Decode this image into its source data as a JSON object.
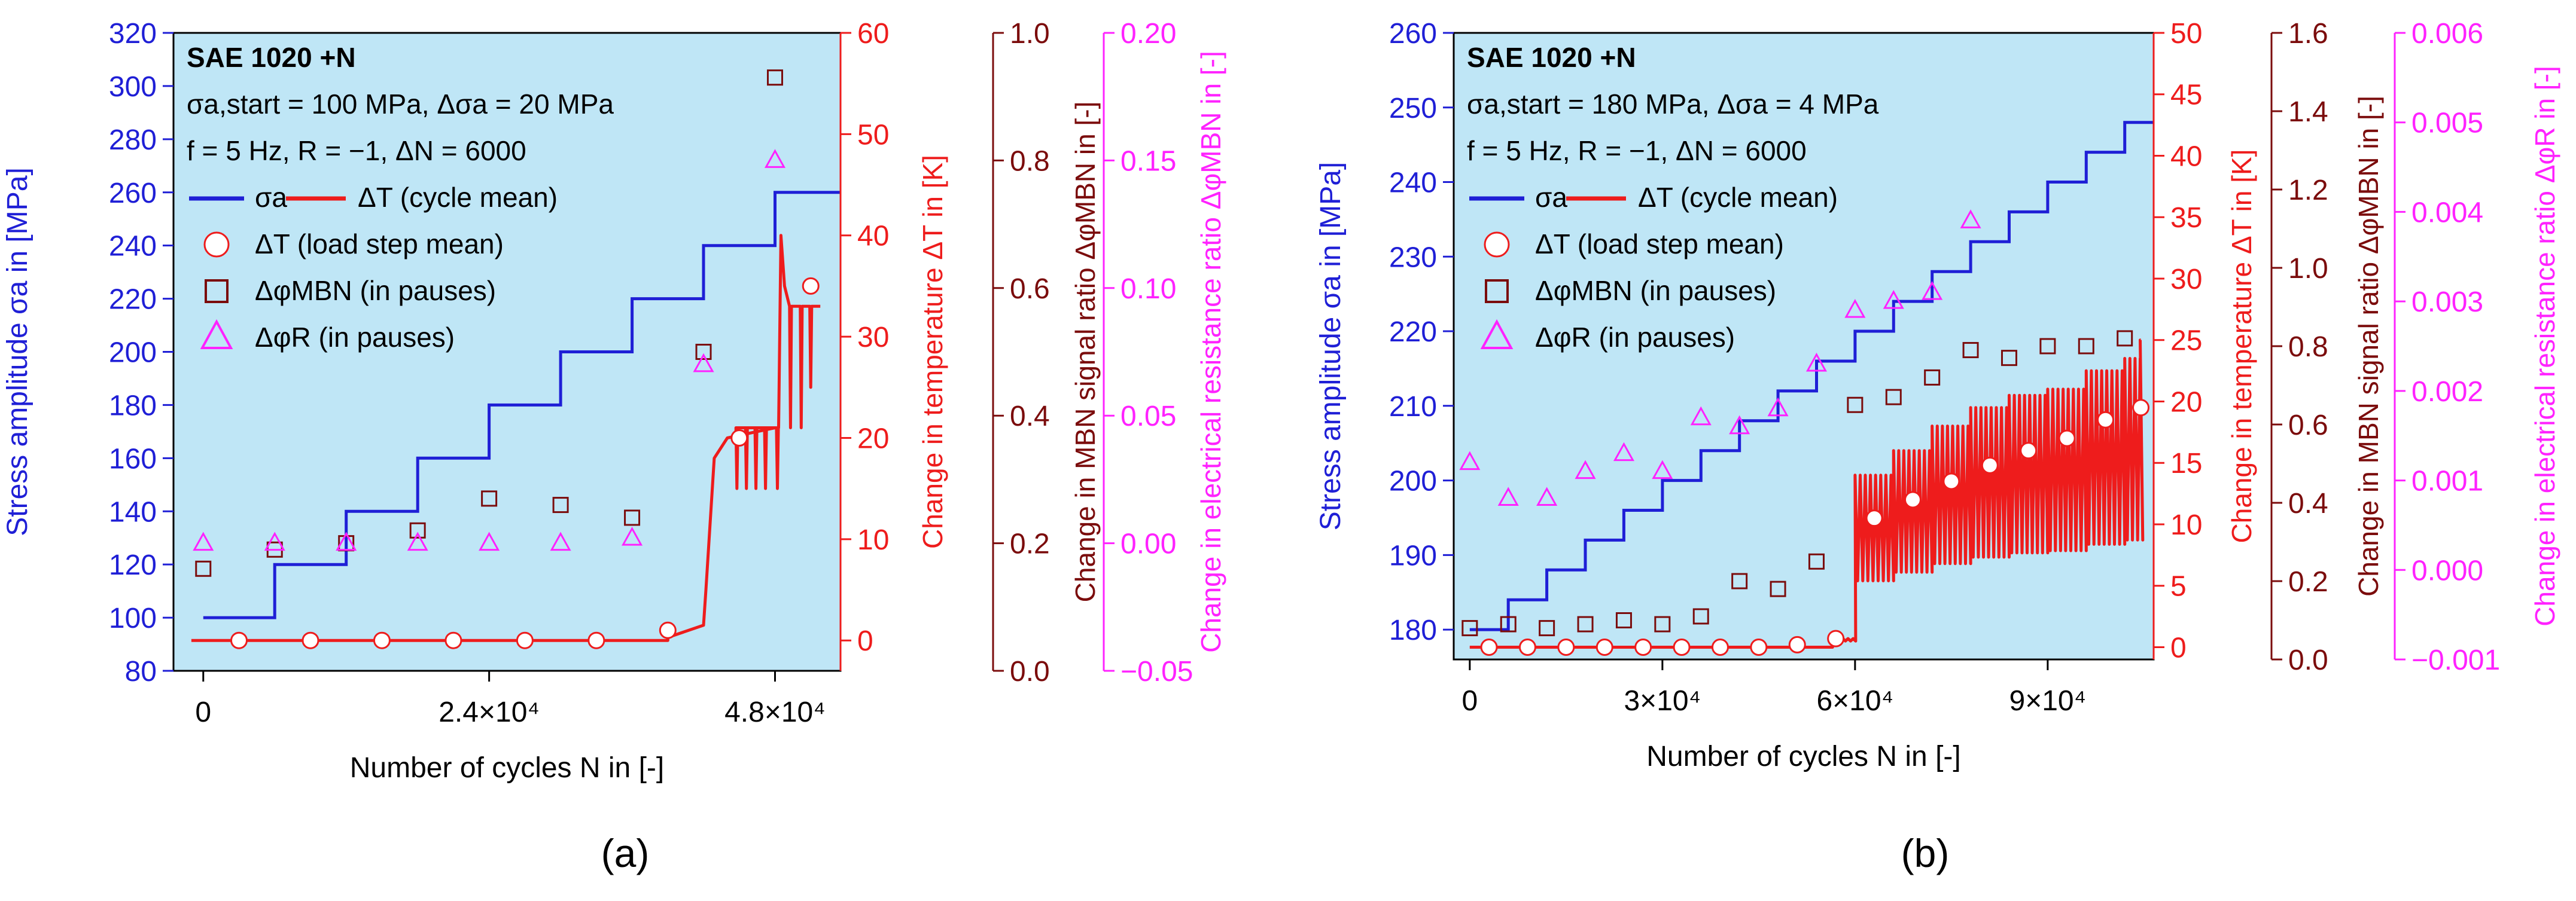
{
  "chart_data": [
    {
      "type": "line",
      "panel_label": "(a)",
      "material": "SAE 1020 +N",
      "info_lines": [
        "σa,start = 100 MPa, Δσa = 20 MPa",
        "f = 5 Hz, R = −1, ΔN = 6000"
      ],
      "xlabel": "Number of cycles N in [-]",
      "xlim": [
        -2500,
        53500
      ],
      "xticks": [
        0,
        24000,
        48000
      ],
      "xtick_labels": [
        "0",
        "2.4×10⁴",
        "4.8×10⁴"
      ],
      "axes": {
        "stress": {
          "label": "Stress amplitude σa in [MPa]",
          "range": [
            80,
            320
          ],
          "ticks": [
            80,
            100,
            120,
            140,
            160,
            180,
            200,
            220,
            240,
            260,
            280,
            300,
            320
          ],
          "color": "#1f1fd6"
        },
        "temp": {
          "label": "Change in temperature ΔT in [K]",
          "range": [
            -3,
            60
          ],
          "ticks": [
            0,
            10,
            20,
            30,
            40,
            50,
            60
          ],
          "color": "#ee1c1c"
        },
        "mbn": {
          "label": "Change in MBN signal ratio ΔφMBN in [-]",
          "range": [
            0,
            1.0
          ],
          "ticks": [
            0.0,
            0.2,
            0.4,
            0.6,
            0.8,
            1.0
          ],
          "tick_labels": [
            "0.0",
            "0.2",
            "0.4",
            "0.6",
            "0.8",
            "1.0"
          ],
          "color": "#7b0c0c"
        },
        "res": {
          "label": "Change in electrical resistance ratio ΔφMBN in [-]",
          "range": [
            -0.05,
            0.2
          ],
          "ticks": [
            -0.05,
            0.0,
            0.05,
            0.1,
            0.15,
            0.2
          ],
          "tick_labels": [
            "−0.05",
            "0.00",
            "0.05",
            "0.10",
            "0.15",
            "0.20"
          ],
          "color": "#ff22ff"
        }
      },
      "legend": [
        {
          "symbol": "line-blue",
          "label": "σa"
        },
        {
          "symbol": "line-red",
          "label": "ΔT (cycle mean)"
        },
        {
          "symbol": "circle",
          "label": "ΔT (load step mean)"
        },
        {
          "symbol": "square",
          "label": "ΔφMBN (in pauses)"
        },
        {
          "symbol": "triangle",
          "label": "ΔφR (in pauses)"
        }
      ],
      "series": {
        "stress_steps": {
          "name": "σa",
          "step_width": 6000,
          "x_start": 0,
          "values": [
            100,
            120,
            140,
            160,
            180,
            200,
            220,
            240,
            260
          ]
        },
        "temp_mean": {
          "name": "ΔT (load step mean)",
          "x": [
            3000,
            9000,
            15000,
            21000,
            27000,
            33000,
            39000,
            45000,
            51000
          ],
          "y": [
            0,
            0,
            0,
            0,
            0,
            0,
            1,
            20,
            35
          ]
        },
        "mbn": {
          "name": "ΔφMBN (in pauses)",
          "x": [
            0,
            6000,
            12000,
            18000,
            24000,
            30000,
            36000,
            42000,
            48000
          ],
          "y": [
            0.16,
            0.19,
            0.2,
            0.22,
            0.27,
            0.26,
            0.24,
            0.5,
            0.93
          ]
        },
        "res": {
          "name": "ΔφR (in pauses)",
          "x": [
            0,
            6000,
            12000,
            18000,
            24000,
            30000,
            36000,
            42000,
            48000
          ],
          "y": [
            0.0,
            0.0,
            0.0,
            0.0,
            0.0,
            0.0,
            0.002,
            0.07,
            0.15
          ]
        },
        "temp_cycle": {
          "name": "ΔT (cycle mean)",
          "end_x": 51800,
          "baseline": 0,
          "baseline_rise": [
            {
              "x": 39000,
              "y": 0.3
            },
            {
              "x": 42000,
              "y": 1.5
            }
          ],
          "ramps": [
            {
              "x0": 42200,
              "x1": 42900,
              "y0": 5,
              "y1": 18
            },
            {
              "x0": 42900,
              "x1": 44000,
              "y0": 18,
              "y1": 20
            },
            {
              "x0": 44000,
              "x1": 48000,
              "y0": 20,
              "y1": 21
            }
          ],
          "step2_start": 48300,
          "step2_end": 51800,
          "step2_level": 33,
          "step2_peak": 40
        },
        "temp_dips": [
          {
            "x": 44800,
            "low": 15
          },
          {
            "x": 45600,
            "low": 15
          },
          {
            "x": 46400,
            "low": 15
          },
          {
            "x": 47200,
            "low": 15
          },
          {
            "x": 48200,
            "low": 15
          },
          {
            "x": 49300,
            "low": 21
          },
          {
            "x": 50200,
            "low": 21
          },
          {
            "x": 51000,
            "low": 25
          }
        ]
      }
    },
    {
      "type": "line",
      "panel_label": "(b)",
      "material": "SAE 1020 +N",
      "info_lines": [
        "σa,start = 180 MPa, Δσa = 4 MPa",
        "f = 5 Hz, R = −1, ΔN = 6000"
      ],
      "xlabel": "Number of cycles N in [-]",
      "xlim": [
        -2500,
        106500
      ],
      "xticks": [
        0,
        30000,
        60000,
        90000
      ],
      "xtick_labels": [
        "0",
        "3×10⁴",
        "6×10⁴",
        "9×10⁴"
      ],
      "axes": {
        "stress": {
          "label": "Stress amplitude σa in [MPa]",
          "range": [
            176,
            260
          ],
          "ticks": [
            180,
            190,
            200,
            210,
            220,
            230,
            240,
            250,
            260
          ],
          "color": "#1f1fd6"
        },
        "temp": {
          "label": "Change in temperature ΔT in [K]",
          "range": [
            -1,
            50
          ],
          "ticks": [
            0,
            5,
            10,
            15,
            20,
            25,
            30,
            35,
            40,
            45,
            50
          ],
          "color": "#ee1c1c"
        },
        "mbn": {
          "label": "Change in MBN signal ratio ΔφMBN in [-]",
          "range": [
            0,
            1.6
          ],
          "ticks": [
            0.0,
            0.2,
            0.4,
            0.6,
            0.8,
            1.0,
            1.2,
            1.4,
            1.6
          ],
          "tick_labels": [
            "0.0",
            "0.2",
            "0.4",
            "0.6",
            "0.8",
            "1.0",
            "1.2",
            "1.4",
            "1.6"
          ],
          "color": "#7b0c0c"
        },
        "res": {
          "label": "Change in electrical resistance ratio ΔφR in [-]",
          "range": [
            -0.001,
            0.006
          ],
          "ticks": [
            -0.001,
            0.0,
            0.001,
            0.002,
            0.003,
            0.004,
            0.005,
            0.006
          ],
          "tick_labels": [
            "−0.001",
            "0.000",
            "0.001",
            "0.002",
            "0.003",
            "0.004",
            "0.005",
            "0.006"
          ],
          "color": "#ff22ff"
        }
      },
      "legend": [
        {
          "symbol": "line-blue",
          "label": "σa"
        },
        {
          "symbol": "line-red",
          "label": "ΔT (cycle mean)"
        },
        {
          "symbol": "circle",
          "label": "ΔT (load step mean)"
        },
        {
          "symbol": "square",
          "label": "ΔφMBN (in pauses)"
        },
        {
          "symbol": "triangle",
          "label": "ΔφR (in pauses)"
        }
      ],
      "series": {
        "stress_steps": {
          "name": "σa",
          "step_width": 6000,
          "x_start": 0,
          "values": [
            180,
            184,
            188,
            192,
            196,
            200,
            204,
            208,
            212,
            216,
            220,
            224,
            228,
            232,
            236,
            240,
            244,
            248
          ]
        },
        "temp_mean": {
          "name": "ΔT (load step mean)",
          "x": [
            3000,
            9000,
            15000,
            21000,
            27000,
            33000,
            39000,
            45000,
            51000,
            57000,
            63000,
            69000,
            75000,
            81000,
            87000,
            93000,
            99000,
            104500
          ],
          "y": [
            0,
            0,
            0,
            0,
            0,
            0,
            0,
            0,
            0.2,
            0.7,
            10.5,
            12,
            13.5,
            14.8,
            16,
            17,
            18.5,
            19.5
          ]
        },
        "mbn": {
          "name": "ΔφMBN (in pauses)",
          "x": [
            0,
            6000,
            12000,
            18000,
            24000,
            30000,
            36000,
            42000,
            48000,
            54000,
            60000,
            66000,
            72000,
            78000,
            84000,
            90000,
            96000,
            102000
          ],
          "y": [
            0.08,
            0.09,
            0.08,
            0.09,
            0.1,
            0.09,
            0.11,
            0.2,
            0.18,
            0.25,
            0.65,
            0.67,
            0.72,
            0.79,
            0.77,
            0.8,
            0.8,
            0.82
          ]
        },
        "res": {
          "name": "ΔφR (in pauses)",
          "x": [
            0,
            6000,
            12000,
            18000,
            24000,
            30000,
            36000,
            42000,
            48000,
            54000,
            60000,
            66000,
            72000,
            78000
          ],
          "y": [
            0.0012,
            0.0008,
            0.0008,
            0.0011,
            0.0013,
            0.0011,
            0.0017,
            0.0016,
            0.0018,
            0.0023,
            0.0029,
            0.003,
            0.0031,
            0.0039
          ]
        },
        "temp_cycle": {
          "name": "ΔT (cycle mean)",
          "end_x": 104500,
          "baseline": 0,
          "step_width": 6000,
          "steps": [
            {
              "x0": 56500,
              "x1": 60000,
              "level": 0.7
            },
            {
              "x0": 60000,
              "x1": 66000,
              "level": 14
            },
            {
              "x0": 66000,
              "x1": 72000,
              "level": 16
            },
            {
              "x0": 72000,
              "x1": 78000,
              "level": 18
            },
            {
              "x0": 78000,
              "x1": 84000,
              "level": 19.5
            },
            {
              "x0": 84000,
              "x1": 90000,
              "level": 20.5
            },
            {
              "x0": 90000,
              "x1": 96000,
              "level": 21
            },
            {
              "x0": 96000,
              "x1": 102000,
              "level": 22.5
            },
            {
              "x0": 102000,
              "x1": 104500,
              "level": 23.5
            }
          ],
          "oscillation_period": 800,
          "oscillation_low": 0.5,
          "final_jump": 25
        }
      }
    }
  ]
}
